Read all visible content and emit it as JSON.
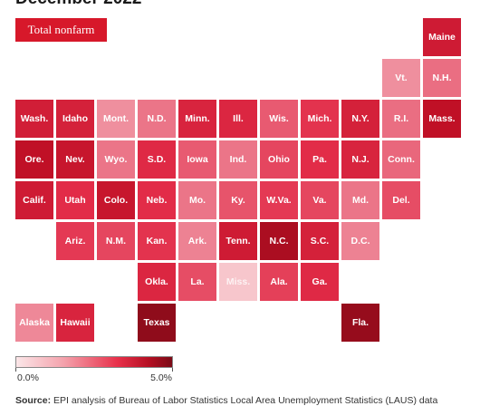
{
  "title": "December 2022",
  "filter_button": "Total nonfarm",
  "legend": {
    "min_label": "0.0%",
    "max_label": "5.0%",
    "min": 0,
    "max": 5
  },
  "source": {
    "label": "Source:",
    "text": "EPI analysis of Bureau of Labor Statistics Local Area Unemployment Statistics (LAUS) data"
  },
  "colors": {
    "accent": "#d7182a",
    "low": "#fbe6e8",
    "high": "#7a0a16"
  },
  "chart_data": {
    "type": "heatmap",
    "subtype": "tile-grid-map",
    "title": "December 2022",
    "scale": {
      "min": 0.0,
      "max": 5.0,
      "unit": "%"
    },
    "tiles": [
      {
        "label": "Maine",
        "col": 10,
        "row": 0,
        "value": 3.6
      },
      {
        "label": "Vt.",
        "col": 9,
        "row": 1,
        "value": 1.5
      },
      {
        "label": "N.H.",
        "col": 10,
        "row": 1,
        "value": 2.0
      },
      {
        "label": "Wash.",
        "col": 0,
        "row": 2,
        "value": 3.5
      },
      {
        "label": "Idaho",
        "col": 1,
        "row": 2,
        "value": 3.4
      },
      {
        "label": "Mont.",
        "col": 2,
        "row": 2,
        "value": 1.5
      },
      {
        "label": "N.D.",
        "col": 3,
        "row": 2,
        "value": 1.9
      },
      {
        "label": "Minn.",
        "col": 4,
        "row": 2,
        "value": 3.3
      },
      {
        "label": "Ill.",
        "col": 5,
        "row": 2,
        "value": 3.2
      },
      {
        "label": "Wis.",
        "col": 6,
        "row": 2,
        "value": 2.3
      },
      {
        "label": "Mich.",
        "col": 7,
        "row": 2,
        "value": 2.9
      },
      {
        "label": "N.Y.",
        "col": 8,
        "row": 2,
        "value": 3.4
      },
      {
        "label": "R.I.",
        "col": 9,
        "row": 2,
        "value": 2.0
      },
      {
        "label": "Mass.",
        "col": 10,
        "row": 2,
        "value": 4.0
      },
      {
        "label": "Ore.",
        "col": 0,
        "row": 3,
        "value": 4.0
      },
      {
        "label": "Nev.",
        "col": 1,
        "row": 3,
        "value": 3.8
      },
      {
        "label": "Wyo.",
        "col": 2,
        "row": 3,
        "value": 1.9
      },
      {
        "label": "S.D.",
        "col": 3,
        "row": 3,
        "value": 3.1
      },
      {
        "label": "Iowa",
        "col": 4,
        "row": 3,
        "value": 2.3
      },
      {
        "label": "Ind.",
        "col": 5,
        "row": 3,
        "value": 1.9
      },
      {
        "label": "Ohio",
        "col": 6,
        "row": 3,
        "value": 2.6
      },
      {
        "label": "Pa.",
        "col": 7,
        "row": 3,
        "value": 3.0
      },
      {
        "label": "N.J.",
        "col": 8,
        "row": 3,
        "value": 3.3
      },
      {
        "label": "Conn.",
        "col": 9,
        "row": 3,
        "value": 2.1
      },
      {
        "label": "Calif.",
        "col": 0,
        "row": 4,
        "value": 3.6
      },
      {
        "label": "Utah",
        "col": 1,
        "row": 4,
        "value": 3.0
      },
      {
        "label": "Colo.",
        "col": 2,
        "row": 4,
        "value": 3.8
      },
      {
        "label": "Neb.",
        "col": 3,
        "row": 4,
        "value": 3.0
      },
      {
        "label": "Mo.",
        "col": 4,
        "row": 4,
        "value": 1.9
      },
      {
        "label": "Ky.",
        "col": 5,
        "row": 4,
        "value": 2.4
      },
      {
        "label": "W.Va.",
        "col": 6,
        "row": 4,
        "value": 2.8
      },
      {
        "label": "Va.",
        "col": 7,
        "row": 4,
        "value": 2.6
      },
      {
        "label": "Md.",
        "col": 8,
        "row": 4,
        "value": 1.9
      },
      {
        "label": "Del.",
        "col": 9,
        "row": 4,
        "value": 2.5
      },
      {
        "label": "Ariz.",
        "col": 1,
        "row": 5,
        "value": 2.8
      },
      {
        "label": "N.M.",
        "col": 2,
        "row": 5,
        "value": 2.6
      },
      {
        "label": "Kan.",
        "col": 3,
        "row": 5,
        "value": 2.9
      },
      {
        "label": "Ark.",
        "col": 4,
        "row": 5,
        "value": 1.7
      },
      {
        "label": "Tenn.",
        "col": 5,
        "row": 5,
        "value": 3.6
      },
      {
        "label": "N.C.",
        "col": 6,
        "row": 5,
        "value": 4.3
      },
      {
        "label": "S.C.",
        "col": 7,
        "row": 5,
        "value": 3.4
      },
      {
        "label": "D.C.",
        "col": 8,
        "row": 5,
        "value": 1.7
      },
      {
        "label": "Okla.",
        "col": 3,
        "row": 6,
        "value": 3.2
      },
      {
        "label": "La.",
        "col": 4,
        "row": 6,
        "value": 2.5
      },
      {
        "label": "Miss.",
        "col": 5,
        "row": 6,
        "value": 0.6
      },
      {
        "label": "Ala.",
        "col": 6,
        "row": 6,
        "value": 2.7
      },
      {
        "label": "Ga.",
        "col": 7,
        "row": 6,
        "value": 3.1
      },
      {
        "label": "Alaska",
        "col": 0,
        "row": 7,
        "value": 1.6
      },
      {
        "label": "Hawaii",
        "col": 1,
        "row": 7,
        "value": 3.3
      },
      {
        "label": "Texas",
        "col": 3,
        "row": 7,
        "value": 4.7
      },
      {
        "label": "Fla.",
        "col": 8,
        "row": 7,
        "value": 4.6
      }
    ]
  }
}
